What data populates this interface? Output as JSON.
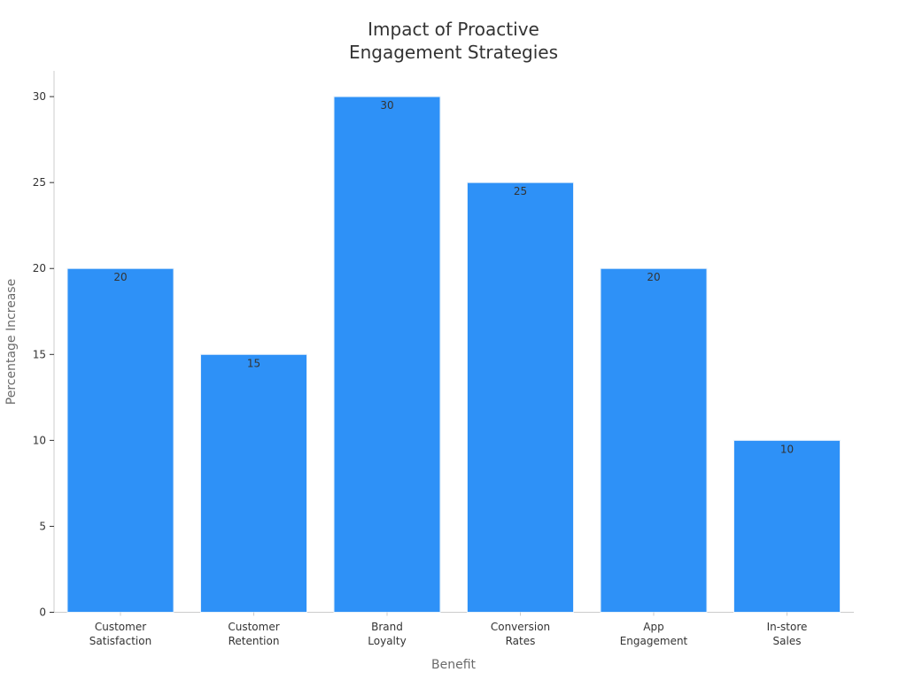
{
  "chart_data": {
    "type": "bar",
    "title": [
      "Impact of Proactive",
      "Engagement Strategies"
    ],
    "xlabel": "Benefit",
    "ylabel": "Percentage Increase",
    "categories": [
      [
        "Customer",
        "Satisfaction"
      ],
      [
        "Customer",
        "Retention"
      ],
      [
        "Brand",
        "Loyalty"
      ],
      [
        "Conversion",
        "Rates"
      ],
      [
        "App",
        "Engagement"
      ],
      [
        "In-store",
        "Sales"
      ]
    ],
    "values": [
      20,
      15,
      30,
      25,
      20,
      10
    ],
    "ylim": [
      0,
      31.5
    ],
    "yticks": [
      0,
      5,
      10,
      15,
      20,
      25,
      30
    ],
    "grid": false,
    "bar_color": "#2e91f7",
    "bar_edge_color": "#e6f0fa"
  }
}
